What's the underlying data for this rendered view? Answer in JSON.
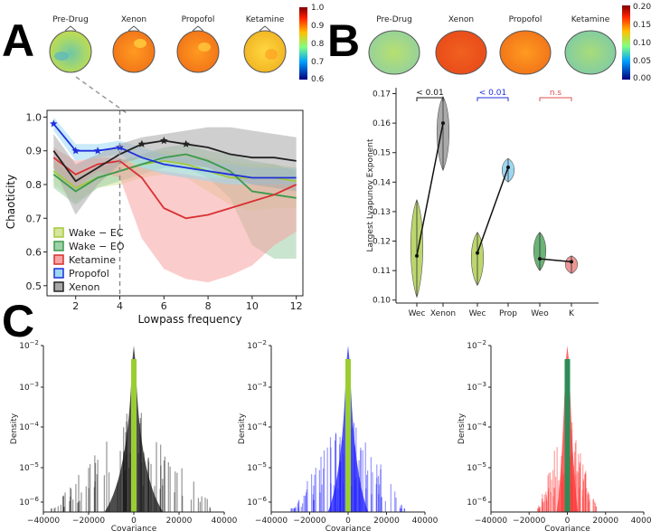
{
  "panel_letters": [
    "A",
    "B",
    "C"
  ],
  "chart_data": [
    {
      "id": "A",
      "type": "line",
      "title": "",
      "xlabel": "Lowpass frequency",
      "ylabel": "Chaoticity",
      "xlim": [
        0.7,
        12.3
      ],
      "ylim": [
        0.47,
        1.02
      ],
      "xticks": [
        2,
        4,
        6,
        8,
        10,
        12
      ],
      "yticks": [
        0.5,
        0.6,
        0.7,
        0.8,
        0.9,
        1.0
      ],
      "x": [
        1,
        2,
        3,
        4,
        5,
        6,
        7,
        8,
        9,
        10,
        11,
        12
      ],
      "dashed_vline_x": 4,
      "series": [
        {
          "name": "Wake − EC",
          "color": "#a6c83c",
          "values": [
            0.84,
            0.79,
            0.82,
            0.84,
            0.86,
            0.87,
            0.86,
            0.84,
            0.82,
            0.82,
            0.82,
            0.81
          ],
          "lower": [
            0.8,
            0.75,
            0.79,
            0.8,
            0.82,
            0.83,
            0.82,
            0.78,
            0.74,
            0.72,
            0.73,
            0.73
          ],
          "upper": [
            0.88,
            0.83,
            0.85,
            0.87,
            0.89,
            0.9,
            0.89,
            0.88,
            0.87,
            0.86,
            0.86,
            0.85
          ]
        },
        {
          "name": "Wake − EO",
          "color": "#3a9a4a",
          "values": [
            0.83,
            0.78,
            0.82,
            0.84,
            0.86,
            0.88,
            0.89,
            0.87,
            0.84,
            0.78,
            0.77,
            0.76
          ],
          "lower": [
            0.79,
            0.74,
            0.79,
            0.81,
            0.83,
            0.85,
            0.85,
            0.82,
            0.76,
            0.62,
            0.58,
            0.58
          ],
          "upper": [
            0.87,
            0.82,
            0.85,
            0.87,
            0.89,
            0.91,
            0.92,
            0.9,
            0.89,
            0.87,
            0.86,
            0.84
          ]
        },
        {
          "name": "Ketamine",
          "color": "#d93030",
          "values": [
            0.88,
            0.83,
            0.86,
            0.87,
            0.82,
            0.73,
            0.7,
            0.71,
            0.73,
            0.75,
            0.77,
            0.8
          ],
          "lower": [
            0.85,
            0.79,
            0.84,
            0.82,
            0.64,
            0.55,
            0.52,
            0.51,
            0.53,
            0.56,
            0.62,
            0.66
          ],
          "upper": [
            0.91,
            0.87,
            0.88,
            0.88,
            0.85,
            0.84,
            0.83,
            0.82,
            0.82,
            0.82,
            0.82,
            0.81
          ]
        },
        {
          "name": "Propofol",
          "color": "#1f2fdc",
          "values": [
            0.98,
            0.9,
            0.9,
            0.91,
            0.88,
            0.86,
            0.85,
            0.84,
            0.83,
            0.82,
            0.82,
            0.82
          ],
          "lower": [
            0.96,
            0.87,
            0.88,
            0.89,
            0.85,
            0.83,
            0.82,
            0.81,
            0.8,
            0.8,
            0.8,
            0.8
          ],
          "upper": [
            1.0,
            0.92,
            0.92,
            0.93,
            0.91,
            0.89,
            0.88,
            0.87,
            0.86,
            0.85,
            0.85,
            0.85
          ]
        },
        {
          "name": "Xenon",
          "color": "#222222",
          "values": [
            0.9,
            0.81,
            0.85,
            0.89,
            0.92,
            0.93,
            0.92,
            0.91,
            0.89,
            0.88,
            0.88,
            0.87
          ],
          "lower": [
            0.85,
            0.71,
            0.8,
            0.86,
            0.88,
            0.87,
            0.86,
            0.85,
            0.82,
            0.8,
            0.79,
            0.78
          ],
          "upper": [
            0.95,
            0.86,
            0.89,
            0.92,
            0.94,
            0.95,
            0.96,
            0.97,
            0.97,
            0.96,
            0.95,
            0.94
          ]
        }
      ],
      "propofol_star_markers_x": [
        1,
        2,
        3,
        4
      ],
      "xenon_star_markers_x": [
        5,
        6,
        7
      ],
      "legend_position": "lower-left",
      "topomap_labels": [
        "Pre-Drug",
        "Xenon",
        "Propofol",
        "Ketamine"
      ],
      "colorbar_ticks": [
        "1.0",
        "0.9",
        "0.8",
        "0.7",
        "0.6"
      ]
    },
    {
      "id": "B",
      "type": "violin",
      "ylabel": "Largest Lyapunov Exponent",
      "ylim": [
        0.099,
        0.172
      ],
      "yticks": [
        0.1,
        0.11,
        0.12,
        0.13,
        0.14,
        0.15,
        0.16,
        0.17
      ],
      "categories": [
        "Wec",
        "Xenon",
        "Wec",
        "Prop",
        "Weo",
        "K"
      ],
      "colors": [
        "#a6c83c",
        "#8c8c8c",
        "#a6c83c",
        "#7ec8ec",
        "#3a9a4a",
        "#e57373"
      ],
      "medians": [
        0.115,
        0.16,
        0.116,
        0.145,
        0.114,
        0.113
      ],
      "ranges": [
        [
          0.101,
          0.134
        ],
        [
          0.144,
          0.169
        ],
        [
          0.105,
          0.123
        ],
        [
          0.14,
          0.148
        ],
        [
          0.11,
          0.123
        ],
        [
          0.109,
          0.115
        ]
      ],
      "significance": [
        {
          "pair": [
            0,
            1
          ],
          "label": "< 0.01",
          "color": "#111111"
        },
        {
          "pair": [
            2,
            3
          ],
          "label": "< 0.01",
          "color": "#2030dd"
        },
        {
          "pair": [
            4,
            5
          ],
          "label": "n.s",
          "color": "#e05050"
        }
      ],
      "topomap_labels": [
        "Pre-Drug",
        "Xenon",
        "Propofol",
        "Ketamine"
      ],
      "colorbar_ticks": [
        "0.20",
        "0.15",
        "0.10",
        "0.05",
        "0.00"
      ]
    },
    {
      "id": "C",
      "type": "histogram",
      "xlabel": "Covariance",
      "ylabel": "Density",
      "xlim": [
        -40000,
        40000
      ],
      "xticks": [
        "−40000",
        "−20000",
        "0",
        "20000",
        "40000"
      ],
      "ytick_exponents": [
        "−2",
        "−3",
        "−4",
        "−5",
        "−6"
      ],
      "ytick_base": "10",
      "panels": [
        {
          "condition": "Xenon",
          "color": "#111111",
          "center_color": "#9acd32",
          "spread": 37000
        },
        {
          "condition": "Propofol",
          "color": "#1a1aff",
          "center_color": "#9acd32",
          "spread": 30000
        },
        {
          "condition": "Ketamine",
          "color": "#ff3030",
          "center_color": "#2e8b57",
          "spread": 16000
        }
      ]
    }
  ]
}
